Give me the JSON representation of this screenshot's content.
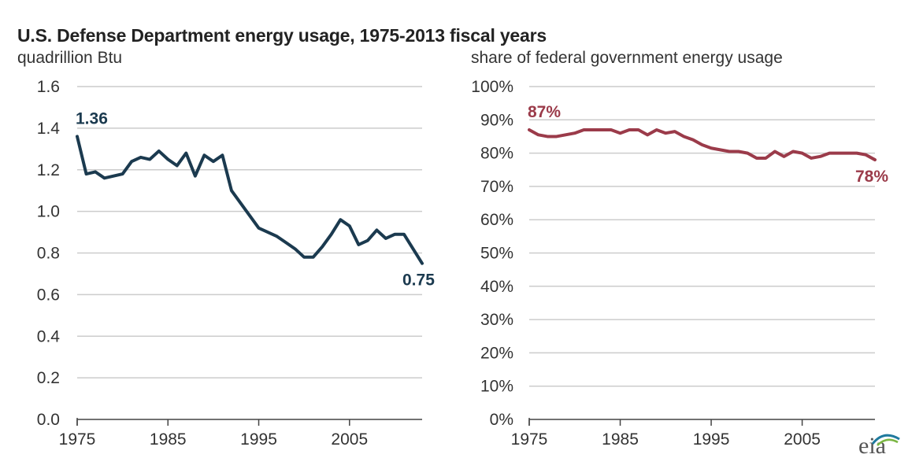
{
  "title": "U.S. Defense Department energy usage, 1975-2013  fiscal years",
  "logo_text": "eia",
  "colors": {
    "left_series": "#1b3a4f",
    "right_series": "#9b3b4a",
    "grid": "#cccccc",
    "axis": "#444444",
    "text": "#333333"
  },
  "chart_data": [
    {
      "type": "line",
      "ylabel": "quadrillion  Btu",
      "xlim": [
        1975,
        2013
      ],
      "ylim": [
        0,
        1.6
      ],
      "x_ticks": [
        1975,
        1985,
        1995,
        2005
      ],
      "x_tick_labels": [
        "1975",
        "1985",
        "1995",
        "2005"
      ],
      "y_ticks": [
        0,
        0.2,
        0.4,
        0.6,
        0.8,
        1.0,
        1.2,
        1.4,
        1.6
      ],
      "y_tick_labels": [
        "0.0",
        "0.2",
        "0.4",
        "0.6",
        "0.8",
        "1.0",
        "1.2",
        "1.4",
        "1.6"
      ],
      "grid": true,
      "x": [
        1975,
        1976,
        1977,
        1978,
        1979,
        1980,
        1981,
        1982,
        1983,
        1984,
        1985,
        1986,
        1987,
        1988,
        1989,
        1990,
        1991,
        1992,
        1993,
        1994,
        1995,
        1996,
        1997,
        1998,
        1999,
        2000,
        2001,
        2002,
        2003,
        2004,
        2005,
        2006,
        2007,
        2008,
        2009,
        2010,
        2011,
        2012,
        2013
      ],
      "series": [
        {
          "values": [
            1.36,
            1.18,
            1.19,
            1.16,
            1.17,
            1.18,
            1.24,
            1.26,
            1.25,
            1.29,
            1.25,
            1.22,
            1.28,
            1.17,
            1.27,
            1.24,
            1.27,
            1.1,
            1.04,
            0.98,
            0.92,
            0.9,
            0.88,
            0.85,
            0.82,
            0.78,
            0.78,
            0.83,
            0.89,
            0.96,
            0.93,
            0.84,
            0.86,
            0.91,
            0.87,
            0.89,
            0.89,
            0.82,
            0.75
          ]
        }
      ],
      "annotations": [
        {
          "text": "1.36",
          "x": 1975,
          "y": 1.36
        },
        {
          "text": "0.75",
          "x": 2013,
          "y": 0.75
        }
      ]
    },
    {
      "type": "line",
      "ylabel": "share  of federal  government   energy  usage",
      "xlim": [
        1975,
        2013
      ],
      "ylim": [
        0,
        100
      ],
      "x_ticks": [
        1975,
        1985,
        1995,
        2005
      ],
      "x_tick_labels": [
        "1975",
        "1985",
        "1995",
        "2005"
      ],
      "y_ticks": [
        0,
        10,
        20,
        30,
        40,
        50,
        60,
        70,
        80,
        90,
        100
      ],
      "y_tick_labels": [
        "0%",
        "10%",
        "20%",
        "30%",
        "40%",
        "50%",
        "60%",
        "70%",
        "80%",
        "90%",
        "100%"
      ],
      "grid": true,
      "x": [
        1975,
        1976,
        1977,
        1978,
        1979,
        1980,
        1981,
        1982,
        1983,
        1984,
        1985,
        1986,
        1987,
        1988,
        1989,
        1990,
        1991,
        1992,
        1993,
        1994,
        1995,
        1996,
        1997,
        1998,
        1999,
        2000,
        2001,
        2002,
        2003,
        2004,
        2005,
        2006,
        2007,
        2008,
        2009,
        2010,
        2011,
        2012,
        2013
      ],
      "series": [
        {
          "values": [
            87,
            85.5,
            85,
            85,
            85.5,
            86,
            87,
            87,
            87,
            87,
            86,
            87,
            87,
            85.5,
            87,
            86,
            86.5,
            85,
            84,
            82.5,
            81.5,
            81,
            80.5,
            80.5,
            80,
            78.5,
            78.5,
            80.5,
            79,
            80.5,
            80,
            78.5,
            79,
            80,
            80,
            80,
            80,
            79.5,
            78
          ]
        }
      ],
      "annotations": [
        {
          "text": "87%",
          "x": 1975,
          "y": 87
        },
        {
          "text": "78%",
          "x": 2013,
          "y": 78
        }
      ]
    }
  ]
}
